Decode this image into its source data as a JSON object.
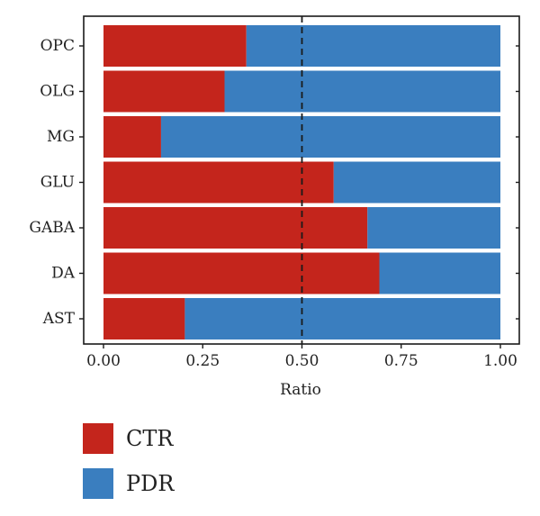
{
  "chart_data": {
    "type": "bar",
    "orientation": "horizontal",
    "stacked": true,
    "categories": [
      "OPC",
      "OLG",
      "MG",
      "GLU",
      "GABA",
      "DA",
      "AST"
    ],
    "series": [
      {
        "name": "CTR",
        "color": "#c4251c",
        "values": [
          0.36,
          0.305,
          0.145,
          0.58,
          0.665,
          0.695,
          0.205
        ]
      },
      {
        "name": "PDR",
        "color": "#3a7ebf",
        "values": [
          0.64,
          0.695,
          0.855,
          0.42,
          0.335,
          0.305,
          0.795
        ]
      }
    ],
    "xlabel": "Ratio",
    "xlim": [
      0,
      1
    ],
    "xticks": [
      "0.00",
      "0.25",
      "0.50",
      "0.75",
      "1.00"
    ],
    "xtick_values": [
      0,
      0.25,
      0.5,
      0.75,
      1.0
    ],
    "reference_line": {
      "x": 0.5,
      "style": "dashed"
    },
    "grid": false,
    "legend": "bottom-left"
  }
}
